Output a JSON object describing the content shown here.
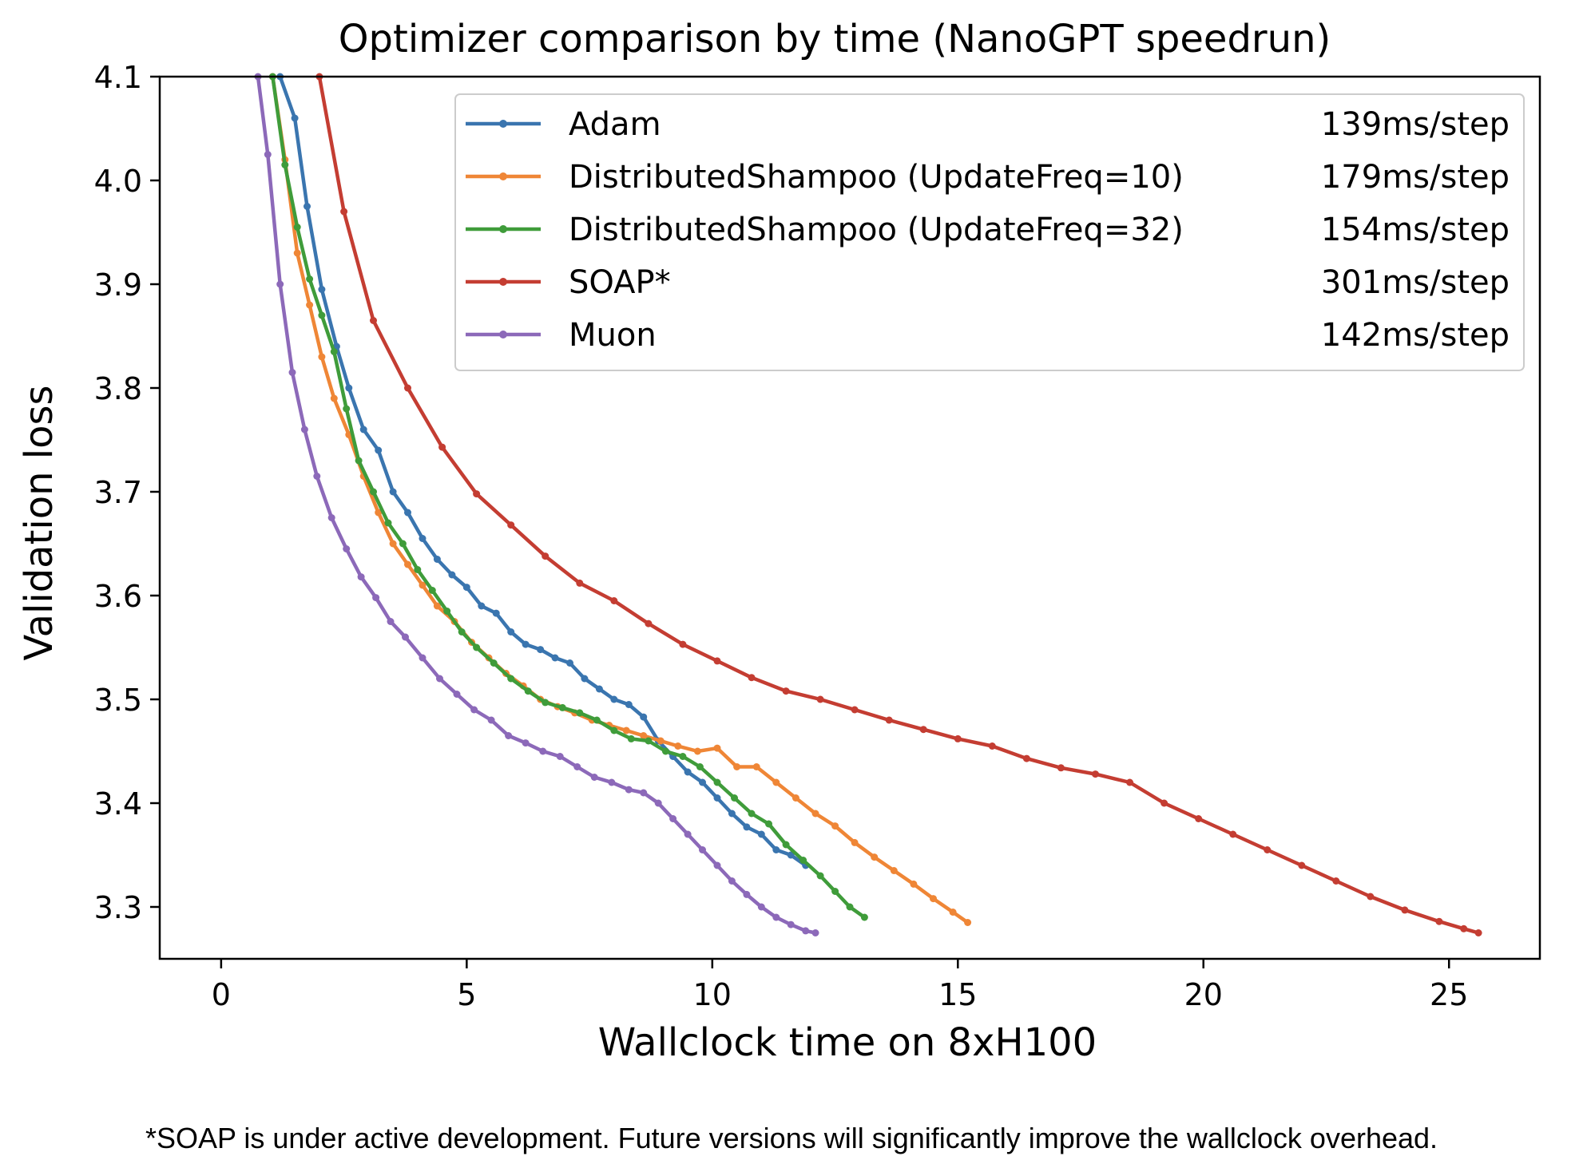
{
  "chart_data": {
    "type": "line",
    "title": "Optimizer comparison by time (NanoGPT speedrun)",
    "xlabel": "Wallclock time on 8xH100",
    "ylabel": "Validation loss",
    "xlim": [
      -1.25,
      26.85
    ],
    "ylim": [
      3.25,
      4.1
    ],
    "xticks": [
      0,
      5,
      10,
      15,
      20,
      25
    ],
    "yticks": [
      3.3,
      3.4,
      3.5,
      3.6,
      3.7,
      3.8,
      3.9,
      4.0,
      4.1
    ],
    "xtick_labels": [
      "0",
      "5",
      "10",
      "15",
      "20",
      "25"
    ],
    "ytick_labels": [
      "3.3",
      "3.4",
      "3.5",
      "3.6",
      "3.7",
      "3.8",
      "3.9",
      "4.0",
      "4.1"
    ],
    "legend_position": "top-right",
    "footnote": "*SOAP is under active development. Future versions will significantly improve the wallclock overhead.",
    "series": [
      {
        "name": "Adam",
        "rate": "139ms/step",
        "color": "#3a75af",
        "x": [
          1.2,
          1.5,
          1.75,
          2.05,
          2.35,
          2.6,
          2.9,
          3.2,
          3.5,
          3.8,
          4.1,
          4.4,
          4.7,
          5.0,
          5.3,
          5.6,
          5.9,
          6.2,
          6.5,
          6.8,
          7.1,
          7.4,
          7.7,
          8.0,
          8.3,
          8.6,
          8.9,
          9.2,
          9.5,
          9.8,
          10.1,
          10.4,
          10.7,
          11.0,
          11.3,
          11.6,
          11.9
        ],
        "y": [
          4.1,
          4.06,
          3.975,
          3.895,
          3.84,
          3.8,
          3.76,
          3.74,
          3.7,
          3.68,
          3.655,
          3.635,
          3.62,
          3.608,
          3.59,
          3.583,
          3.565,
          3.553,
          3.548,
          3.54,
          3.535,
          3.52,
          3.51,
          3.5,
          3.495,
          3.483,
          3.46,
          3.445,
          3.43,
          3.42,
          3.405,
          3.39,
          3.377,
          3.37,
          3.355,
          3.35,
          3.34
        ]
      },
      {
        "name": "DistributedShampoo (UpdateFreq=10)",
        "rate": "179ms/step",
        "color": "#ef8636",
        "x": [
          1.05,
          1.3,
          1.55,
          1.8,
          2.05,
          2.3,
          2.6,
          2.9,
          3.2,
          3.5,
          3.8,
          4.1,
          4.4,
          4.75,
          5.1,
          5.45,
          5.8,
          6.15,
          6.5,
          6.85,
          7.2,
          7.55,
          7.9,
          8.25,
          8.6,
          8.95,
          9.3,
          9.7,
          10.1,
          10.5,
          10.9,
          11.3,
          11.7,
          12.1,
          12.5,
          12.9,
          13.3,
          13.7,
          14.1,
          14.5,
          14.9,
          15.2
        ],
        "y": [
          4.1,
          4.02,
          3.93,
          3.88,
          3.83,
          3.79,
          3.755,
          3.715,
          3.68,
          3.65,
          3.63,
          3.61,
          3.59,
          3.575,
          3.555,
          3.54,
          3.525,
          3.513,
          3.5,
          3.493,
          3.487,
          3.48,
          3.475,
          3.47,
          3.465,
          3.46,
          3.455,
          3.45,
          3.453,
          3.435,
          3.435,
          3.42,
          3.405,
          3.39,
          3.378,
          3.362,
          3.348,
          3.335,
          3.322,
          3.308,
          3.295,
          3.285
        ]
      },
      {
        "name": "DistributedShampoo (UpdateFreq=32)",
        "rate": "154ms/step",
        "color": "#3f9c3a",
        "x": [
          1.05,
          1.3,
          1.55,
          1.8,
          2.05,
          2.3,
          2.55,
          2.8,
          3.1,
          3.4,
          3.7,
          4.0,
          4.3,
          4.6,
          4.9,
          5.2,
          5.55,
          5.9,
          6.25,
          6.6,
          6.95,
          7.3,
          7.65,
          8.0,
          8.35,
          8.7,
          9.05,
          9.4,
          9.75,
          10.1,
          10.45,
          10.8,
          11.15,
          11.5,
          11.85,
          12.2,
          12.5,
          12.8,
          13.1
        ],
        "y": [
          4.1,
          4.015,
          3.955,
          3.905,
          3.87,
          3.835,
          3.78,
          3.73,
          3.7,
          3.67,
          3.65,
          3.625,
          3.605,
          3.585,
          3.565,
          3.55,
          3.535,
          3.52,
          3.508,
          3.497,
          3.492,
          3.487,
          3.48,
          3.47,
          3.462,
          3.46,
          3.45,
          3.445,
          3.435,
          3.42,
          3.405,
          3.39,
          3.38,
          3.36,
          3.345,
          3.33,
          3.315,
          3.3,
          3.29
        ]
      },
      {
        "name": "SOAP*",
        "rate": "301ms/step",
        "color": "#c43d32",
        "x": [
          2.0,
          2.5,
          3.1,
          3.8,
          4.5,
          5.2,
          5.9,
          6.6,
          7.3,
          8.0,
          8.7,
          9.4,
          10.1,
          10.8,
          11.5,
          12.2,
          12.9,
          13.6,
          14.3,
          15.0,
          15.7,
          16.4,
          17.1,
          17.8,
          18.5,
          19.2,
          19.9,
          20.6,
          21.3,
          22.0,
          22.7,
          23.4,
          24.1,
          24.8,
          25.3,
          25.6
        ],
        "y": [
          4.1,
          3.97,
          3.865,
          3.8,
          3.743,
          3.698,
          3.668,
          3.638,
          3.612,
          3.595,
          3.573,
          3.553,
          3.537,
          3.521,
          3.508,
          3.5,
          3.49,
          3.48,
          3.471,
          3.462,
          3.455,
          3.443,
          3.434,
          3.428,
          3.42,
          3.4,
          3.385,
          3.37,
          3.355,
          3.34,
          3.325,
          3.31,
          3.297,
          3.286,
          3.279,
          3.275
        ]
      },
      {
        "name": "Muon",
        "rate": "142ms/step",
        "color": "#8c69b9",
        "x": [
          0.75,
          0.95,
          1.2,
          1.45,
          1.7,
          1.95,
          2.25,
          2.55,
          2.85,
          3.15,
          3.45,
          3.75,
          4.1,
          4.45,
          4.8,
          5.15,
          5.5,
          5.85,
          6.2,
          6.55,
          6.9,
          7.25,
          7.6,
          7.95,
          8.3,
          8.6,
          8.9,
          9.2,
          9.5,
          9.8,
          10.1,
          10.4,
          10.7,
          11.0,
          11.3,
          11.6,
          11.9,
          12.1
        ],
        "y": [
          4.1,
          4.025,
          3.9,
          3.815,
          3.76,
          3.715,
          3.675,
          3.645,
          3.618,
          3.598,
          3.575,
          3.56,
          3.54,
          3.52,
          3.505,
          3.49,
          3.48,
          3.465,
          3.458,
          3.45,
          3.445,
          3.435,
          3.425,
          3.42,
          3.413,
          3.41,
          3.4,
          3.385,
          3.37,
          3.355,
          3.34,
          3.325,
          3.312,
          3.3,
          3.29,
          3.283,
          3.277,
          3.275
        ]
      }
    ]
  }
}
